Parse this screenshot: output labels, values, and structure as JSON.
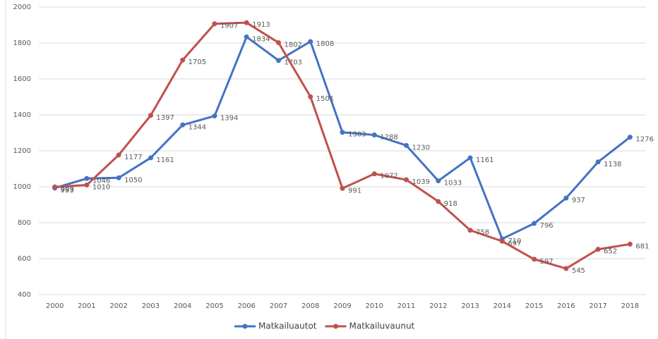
{
  "chart_data": {
    "type": "line",
    "categories": [
      "2000",
      "2001",
      "2002",
      "2003",
      "2004",
      "2005",
      "2006",
      "2007",
      "2008",
      "2009",
      "2010",
      "2011",
      "2012",
      "2013",
      "2014",
      "2015",
      "2016",
      "2017",
      "2018"
    ],
    "series": [
      {
        "name": "Matkailuautot",
        "color": "#4472c4",
        "values": [
          993,
          1046,
          1050,
          1161,
          1344,
          1394,
          1834,
          1703,
          1808,
          1303,
          1288,
          1230,
          1033,
          1161,
          710,
          796,
          937,
          1138,
          1276
        ]
      },
      {
        "name": "Matkailuvaunut",
        "color": "#c0504d",
        "values": [
          999,
          1010,
          1177,
          1397,
          1705,
          1907,
          1913,
          1802,
          1501,
          991,
          1072,
          1039,
          918,
          758,
          697,
          597,
          545,
          652,
          681
        ]
      }
    ],
    "ylim": [
      400,
      2000
    ],
    "yticks": [
      400,
      600,
      800,
      1000,
      1200,
      1400,
      1600,
      1800,
      2000
    ],
    "grid": true,
    "legend": "bottom"
  }
}
